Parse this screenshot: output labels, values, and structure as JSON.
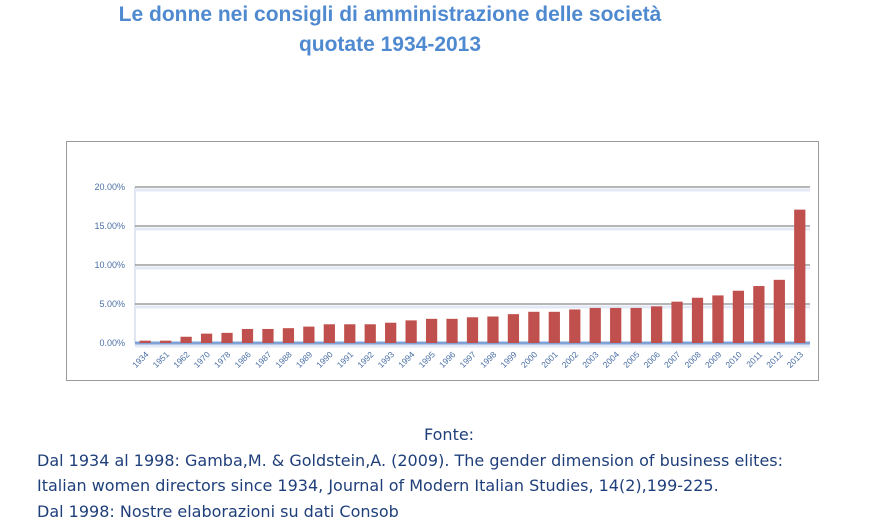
{
  "title_line1": "Le donne nei consigli di amministrazione delle società",
  "title_line2": "quotate 1934-2013",
  "source": {
    "heading": "Fonte:",
    "line1": "Dal 1934 al 1998: Gamba,M. & Goldstein,A. (2009). The gender dimension of business elites:",
    "line2": "Italian women directors since 1934, Journal of Modern Italian  Studies, 14(2),199-225.",
    "line3": "Dal 1998:  Nostre elaborazioni su dati Consob"
  },
  "colors": {
    "bar": "#c0504d",
    "title": "#4f8ad0",
    "axis_text": "#4a6fa5"
  },
  "chart_data": {
    "type": "bar",
    "title": "Le donne nei consigli di amministrazione delle società quotate 1934-2013",
    "xlabel": "",
    "ylabel": "",
    "ylim": [
      0,
      20
    ],
    "yticks": [
      "0.00%",
      "5.00%",
      "10.00%",
      "15.00%",
      "20.00%"
    ],
    "grid": true,
    "categories": [
      "1934",
      "1951",
      "1962",
      "1970",
      "1978",
      "1986",
      "1987",
      "1988",
      "1989",
      "1990",
      "1991",
      "1992",
      "1993",
      "1994",
      "1995",
      "1996",
      "1997",
      "1998",
      "1999",
      "2000",
      "2001",
      "2002",
      "2003",
      "2004",
      "2005",
      "2006",
      "2007",
      "2008",
      "2009",
      "2010",
      "2011",
      "2012",
      "2013"
    ],
    "values": [
      0.3,
      0.3,
      0.8,
      1.2,
      1.3,
      1.8,
      1.8,
      1.9,
      2.1,
      2.4,
      2.4,
      2.4,
      2.6,
      2.9,
      3.1,
      3.1,
      3.3,
      3.4,
      3.7,
      4.0,
      4.0,
      4.3,
      4.5,
      4.5,
      4.5,
      4.7,
      5.3,
      5.8,
      6.1,
      6.7,
      7.3,
      8.1,
      17.1
    ]
  }
}
